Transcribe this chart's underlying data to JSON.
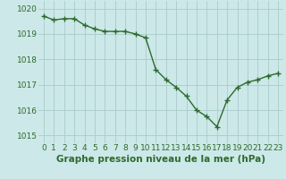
{
  "x": [
    0,
    1,
    2,
    3,
    4,
    5,
    6,
    7,
    8,
    9,
    10,
    11,
    12,
    13,
    14,
    15,
    16,
    17,
    18,
    19,
    20,
    21,
    22,
    23
  ],
  "y": [
    1019.7,
    1019.55,
    1019.6,
    1019.6,
    1019.35,
    1019.2,
    1019.1,
    1019.1,
    1019.1,
    1019.0,
    1018.85,
    1017.6,
    1017.2,
    1016.9,
    1016.55,
    1016.0,
    1015.75,
    1015.35,
    1016.4,
    1016.9,
    1017.1,
    1017.2,
    1017.35,
    1017.45
  ],
  "line_color": "#2d6a2d",
  "marker": "+",
  "marker_size": 4,
  "line_width": 1.0,
  "bg_color": "#cce8e8",
  "grid_color": "#aacccc",
  "xlabel": "Graphe pression niveau de la mer (hPa)",
  "xlabel_color": "#2d6a2d",
  "xlabel_fontsize": 7.5,
  "tick_color": "#2d6a2d",
  "tick_fontsize": 6.5,
  "ylim": [
    1014.7,
    1020.3
  ],
  "yticks": [
    1015,
    1016,
    1017,
    1018,
    1019,
    1020
  ],
  "xticks": [
    0,
    1,
    2,
    3,
    4,
    5,
    6,
    7,
    8,
    9,
    10,
    11,
    12,
    13,
    14,
    15,
    16,
    17,
    18,
    19,
    20,
    21,
    22,
    23
  ]
}
